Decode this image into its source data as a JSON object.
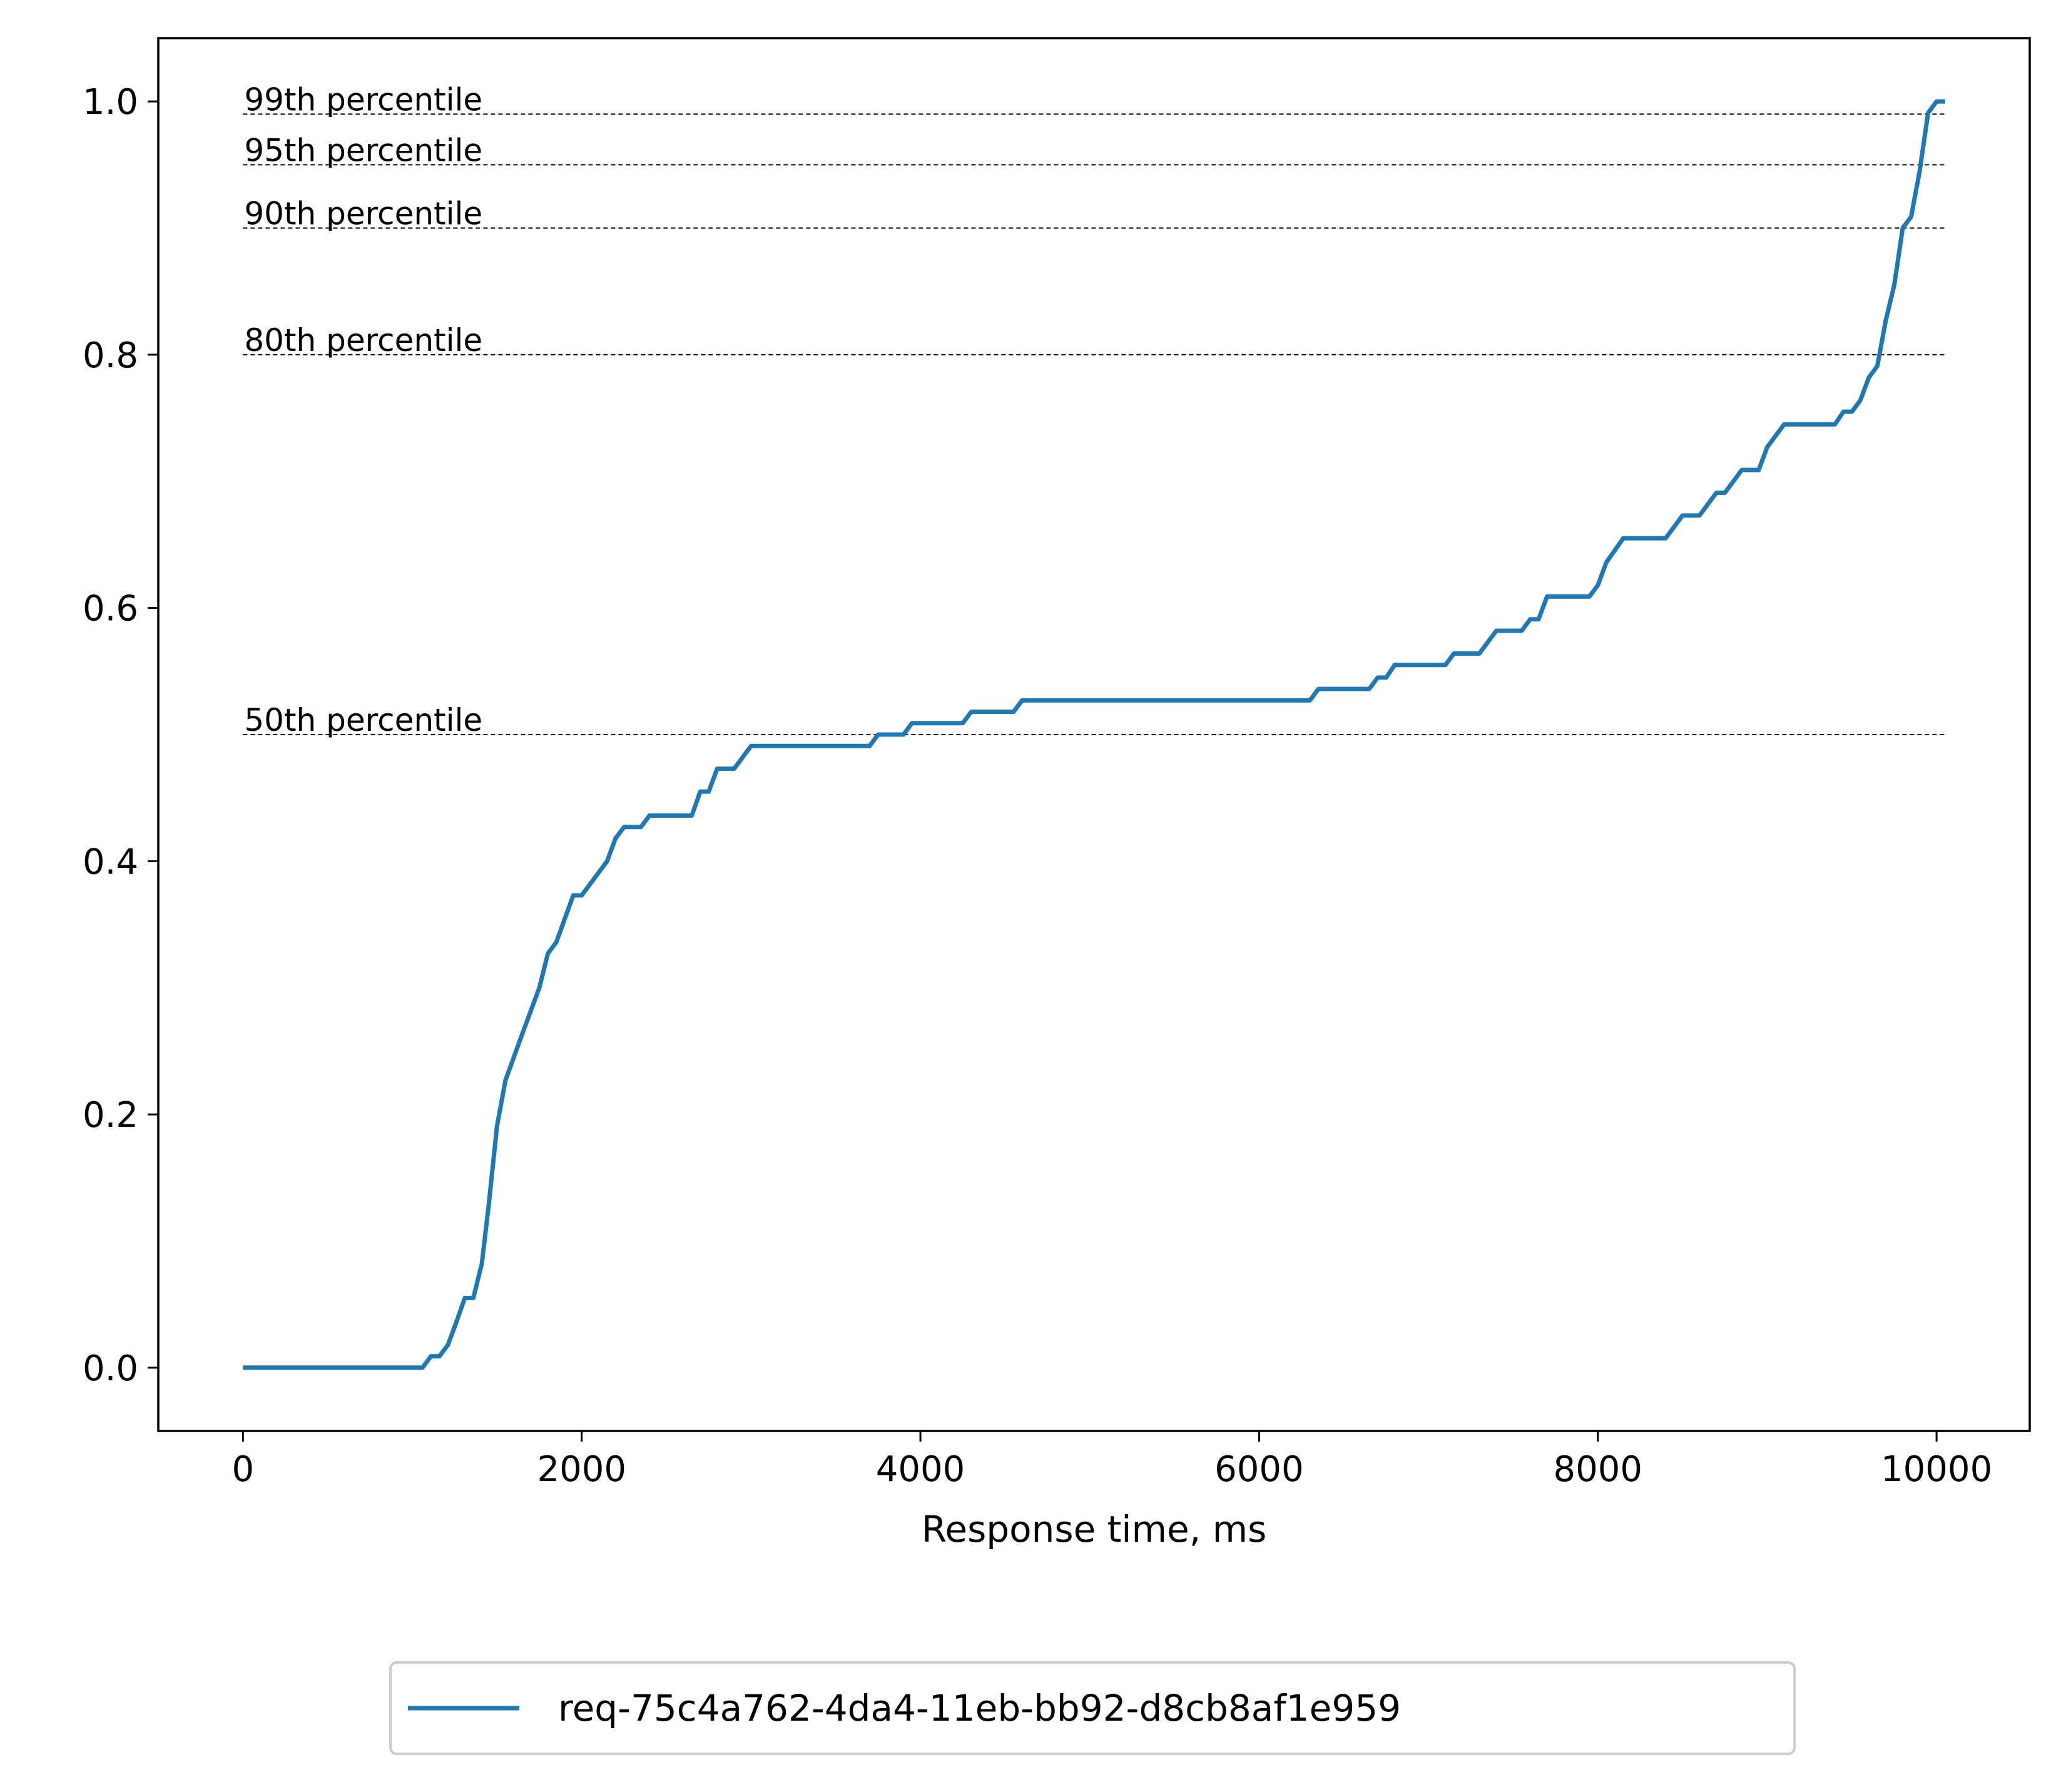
{
  "chart_data": {
    "type": "line",
    "xlabel": "Response time, ms",
    "ylabel": "",
    "xlim": [
      -500,
      10550
    ],
    "ylim": [
      -0.05,
      1.05
    ],
    "x_ticks": [
      0,
      2000,
      4000,
      6000,
      8000,
      10000
    ],
    "y_ticks": [
      0.0,
      0.2,
      0.4,
      0.6,
      0.8,
      1.0
    ],
    "x_tick_labels": [
      "0",
      "2000",
      "4000",
      "6000",
      "8000",
      "10000"
    ],
    "y_tick_labels": [
      "0.0",
      "0.2",
      "0.4",
      "0.6",
      "0.8",
      "1.0"
    ],
    "grid": false,
    "legend_position": "bottom-center outside",
    "percentiles": [
      {
        "label": "50th percentile",
        "value": 0.5
      },
      {
        "label": "80th percentile",
        "value": 0.8
      },
      {
        "label": "90th percentile",
        "value": 0.9
      },
      {
        "label": "95th percentile",
        "value": 0.95
      },
      {
        "label": "99th percentile",
        "value": 0.99
      }
    ],
    "series": [
      {
        "name": "req-75c4a762-4da4-11eb-bb92-d8cb8af1e959",
        "color": "#1f77b4",
        "points": [
          [
            0,
            0.0
          ],
          [
            1060,
            0.0
          ],
          [
            1110,
            0.009
          ],
          [
            1160,
            0.009
          ],
          [
            1210,
            0.018
          ],
          [
            1260,
            0.036
          ],
          [
            1310,
            0.055
          ],
          [
            1360,
            0.055
          ],
          [
            1410,
            0.082
          ],
          [
            1450,
            0.127
          ],
          [
            1500,
            0.191
          ],
          [
            1550,
            0.227
          ],
          [
            1650,
            0.264
          ],
          [
            1750,
            0.3
          ],
          [
            1800,
            0.327
          ],
          [
            1850,
            0.336
          ],
          [
            1950,
            0.373
          ],
          [
            2000,
            0.373
          ],
          [
            2050,
            0.382
          ],
          [
            2150,
            0.4
          ],
          [
            2200,
            0.418
          ],
          [
            2250,
            0.427
          ],
          [
            2350,
            0.427
          ],
          [
            2400,
            0.436
          ],
          [
            2650,
            0.436
          ],
          [
            2700,
            0.455
          ],
          [
            2750,
            0.455
          ],
          [
            2800,
            0.473
          ],
          [
            2900,
            0.473
          ],
          [
            3000,
            0.491
          ],
          [
            3700,
            0.491
          ],
          [
            3750,
            0.5
          ],
          [
            3900,
            0.5
          ],
          [
            3950,
            0.509
          ],
          [
            4250,
            0.509
          ],
          [
            4300,
            0.518
          ],
          [
            4550,
            0.518
          ],
          [
            4600,
            0.527
          ],
          [
            6300,
            0.527
          ],
          [
            6350,
            0.536
          ],
          [
            6650,
            0.536
          ],
          [
            6700,
            0.545
          ],
          [
            6750,
            0.545
          ],
          [
            6800,
            0.555
          ],
          [
            7100,
            0.555
          ],
          [
            7150,
            0.564
          ],
          [
            7300,
            0.564
          ],
          [
            7400,
            0.582
          ],
          [
            7550,
            0.582
          ],
          [
            7600,
            0.591
          ],
          [
            7650,
            0.591
          ],
          [
            7700,
            0.609
          ],
          [
            7950,
            0.609
          ],
          [
            8000,
            0.618
          ],
          [
            8050,
            0.636
          ],
          [
            8150,
            0.655
          ],
          [
            8400,
            0.655
          ],
          [
            8500,
            0.673
          ],
          [
            8600,
            0.673
          ],
          [
            8700,
            0.691
          ],
          [
            8750,
            0.691
          ],
          [
            8850,
            0.709
          ],
          [
            8950,
            0.709
          ],
          [
            9000,
            0.727
          ],
          [
            9100,
            0.745
          ],
          [
            9400,
            0.745
          ],
          [
            9450,
            0.755
          ],
          [
            9500,
            0.755
          ],
          [
            9550,
            0.764
          ],
          [
            9600,
            0.782
          ],
          [
            9650,
            0.791
          ],
          [
            9700,
            0.827
          ],
          [
            9750,
            0.855
          ],
          [
            9800,
            0.9
          ],
          [
            9850,
            0.909
          ],
          [
            9900,
            0.945
          ],
          [
            9950,
            0.991
          ],
          [
            10000,
            1.0
          ],
          [
            10050,
            1.0
          ]
        ]
      }
    ]
  }
}
